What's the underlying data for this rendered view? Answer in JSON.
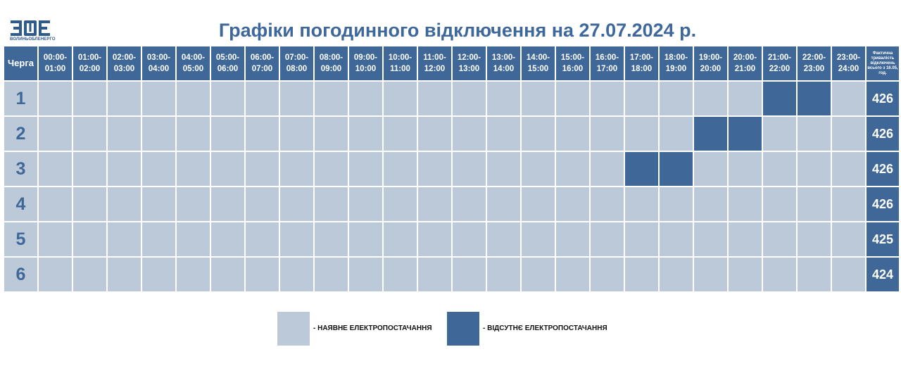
{
  "logo": {
    "mark_icon": "voe-logo-icon",
    "text": "ВОЛИНЬОБЛЕНЕРГО"
  },
  "title": "Графіки погодинного відключення на 27.07.2024 р.",
  "table": {
    "queue_header": "Черга",
    "hours": [
      "00:00-\n01:00",
      "01:00-\n02:00",
      "02:00-\n03:00",
      "03:00-\n04:00",
      "04:00-\n05:00",
      "05:00-\n06:00",
      "06:00-\n07:00",
      "07:00-\n08:00",
      "08:00-\n09:00",
      "09:00-\n10:00",
      "10:00-\n11:00",
      "11:00-\n12:00",
      "12:00-\n13:00",
      "13:00-\n14:00",
      "14:00-\n15:00",
      "15:00-\n16:00",
      "16:00-\n17:00",
      "17:00-\n18:00",
      "18:00-\n19:00",
      "19:00-\n20:00",
      "20:00-\n21:00",
      "21:00-\n22:00",
      "22:00-\n23:00",
      "23:00-\n24:00"
    ],
    "total_header": "Фактична тривалість відключень всього з 16.05, год.",
    "rows": [
      {
        "queue": "1",
        "off_hours": [
          21,
          22
        ],
        "total": "426"
      },
      {
        "queue": "2",
        "off_hours": [
          19,
          20
        ],
        "total": "426"
      },
      {
        "queue": "3",
        "off_hours": [
          17,
          18
        ],
        "total": "426"
      },
      {
        "queue": "4",
        "off_hours": [],
        "total": "426"
      },
      {
        "queue": "5",
        "off_hours": [],
        "total": "425"
      },
      {
        "queue": "6",
        "off_hours": [],
        "total": "424"
      }
    ]
  },
  "legend": {
    "available": {
      "label": "- НАЯВНЕ ЕЛЕКТРОПОСТАЧАННЯ",
      "color": "#bcc9d8"
    },
    "absent": {
      "label": "- ВІДСУТНЄ ЕЛЕКТРОПОСТАЧАННЯ",
      "color": "#3f6898"
    }
  }
}
